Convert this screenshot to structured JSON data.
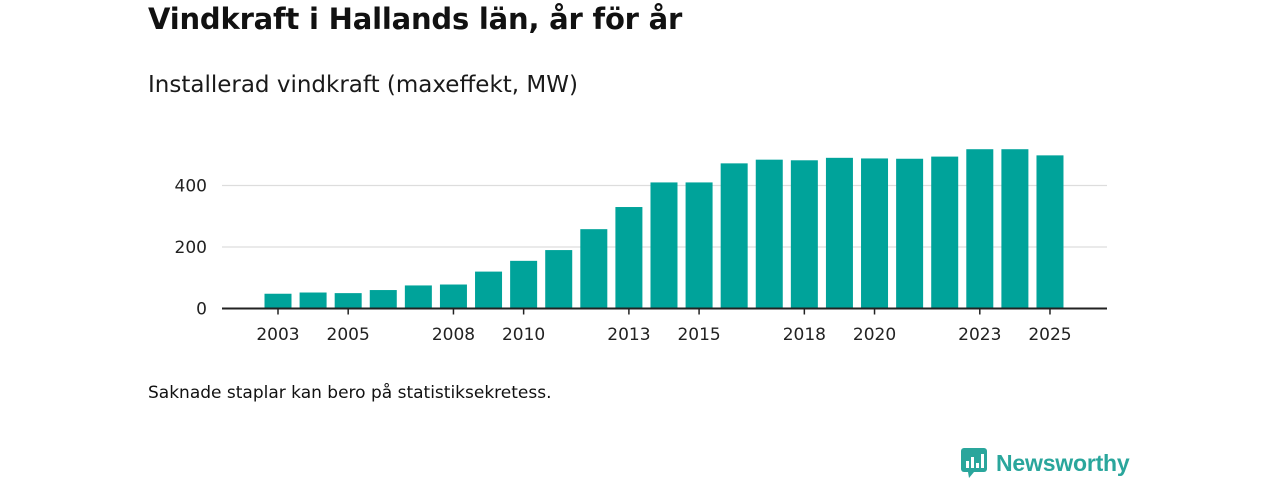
{
  "title": "Vindkraft i Hallands län, år för år",
  "subtitle": "Installerad vindkraft (maxeffekt, MW)",
  "note": "Saknade staplar kan bero på statistiksekretess.",
  "brand": {
    "name": "Newsworthy",
    "color": "#2aa69c"
  },
  "colors": {
    "bar": "#00a39a",
    "grid": "#dddddd",
    "axis": "#222222"
  },
  "chart_data": {
    "type": "bar",
    "title": "Installerad vindkraft (maxeffekt, MW)",
    "xlabel": "",
    "ylabel": "",
    "ylim": [
      0,
      560
    ],
    "yticks": [
      0,
      200,
      400
    ],
    "grid": true,
    "categories": [
      "2003",
      "2004",
      "2005",
      "2006",
      "2007",
      "2008",
      "2009",
      "2010",
      "2011",
      "2012",
      "2013",
      "2014",
      "2015",
      "2016",
      "2017",
      "2018",
      "2019",
      "2020",
      "2021",
      "2022",
      "2023",
      "2024",
      "2025"
    ],
    "values": [
      48,
      52,
      50,
      60,
      75,
      78,
      120,
      155,
      190,
      258,
      330,
      410,
      410,
      472,
      484,
      482,
      490,
      488,
      487,
      494,
      518,
      518,
      498
    ],
    "xtick_labels": [
      "2003",
      "2005",
      "2008",
      "2010",
      "2013",
      "2015",
      "2018",
      "2020",
      "2023",
      "2025"
    ]
  }
}
